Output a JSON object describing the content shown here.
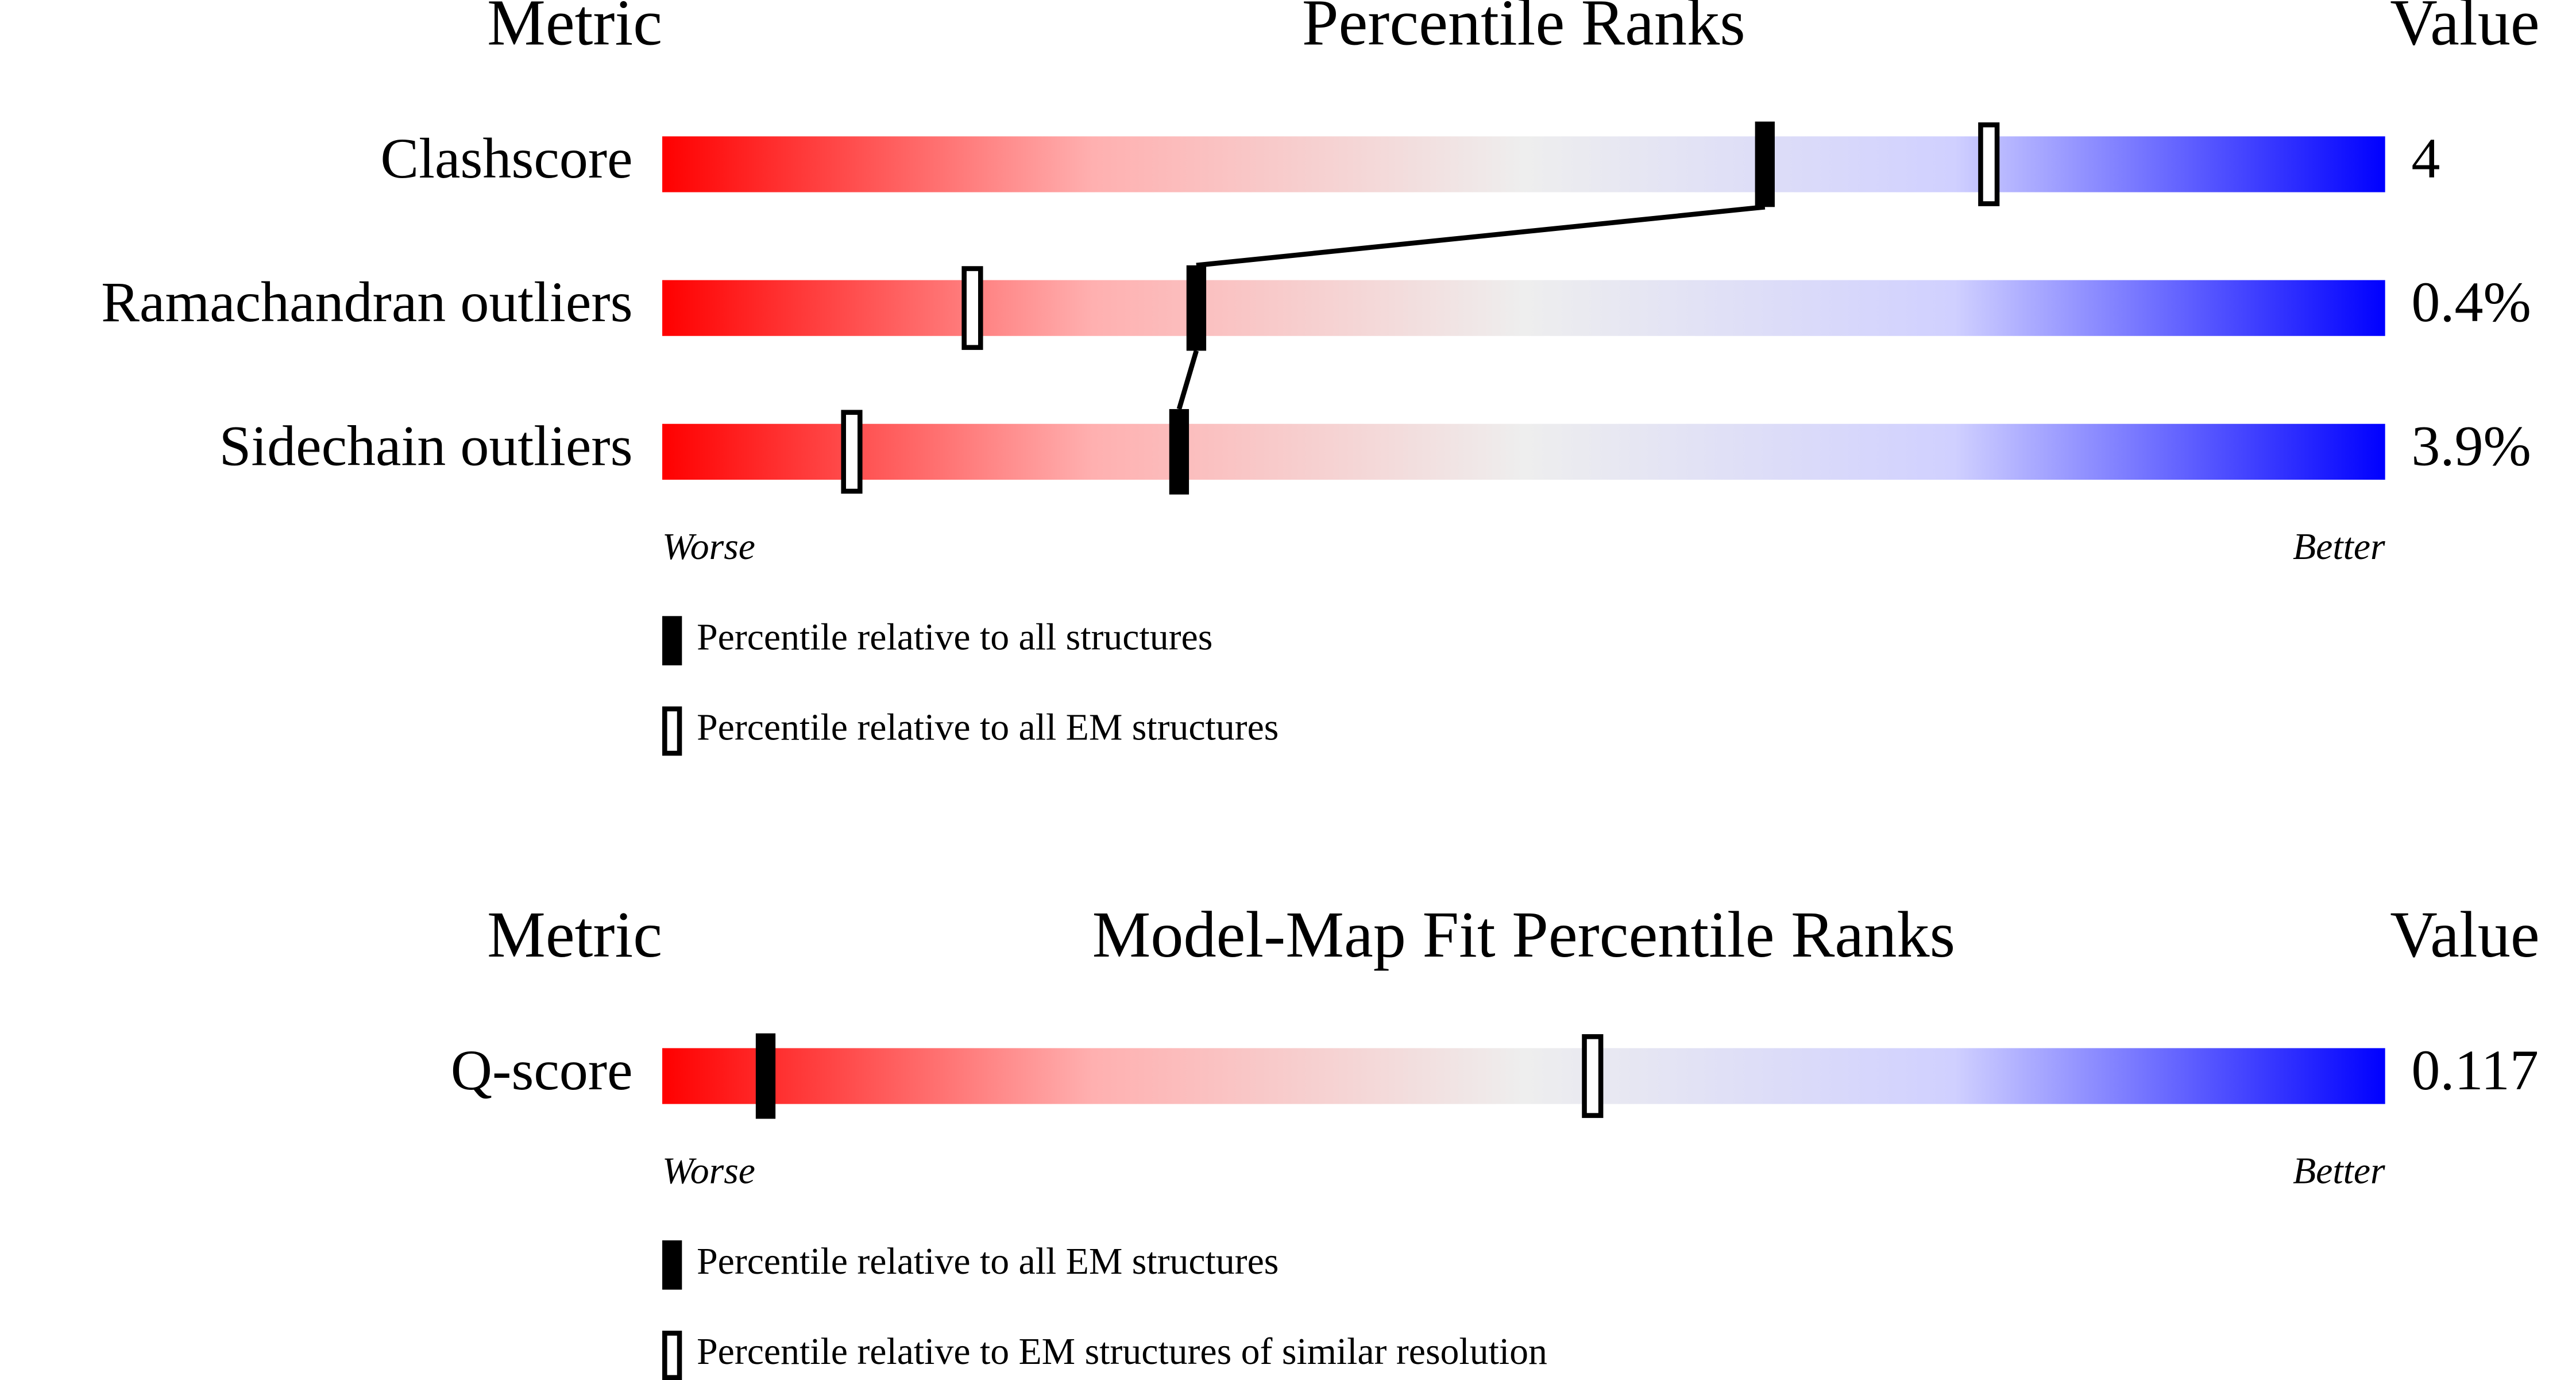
{
  "chart_data": [
    {
      "type": "percentile",
      "title": "Percentile Ranks",
      "metric_header": "Metric",
      "value_header": "Value",
      "categories": [
        "Clashscore",
        "Ramachandran outliers",
        "Sidechain outliers"
      ],
      "metric_values": [
        "4",
        "0.4%",
        "3.9%"
      ],
      "series": [
        {
          "name": "Percentile relative to all structures",
          "style": "filled",
          "color": "#000000",
          "values": [
            64,
            31,
            30
          ]
        },
        {
          "name": "Percentile relative to all EM structures",
          "style": "open",
          "color": "#000000",
          "values": [
            77,
            18,
            11
          ]
        }
      ],
      "xlim": [
        0,
        100
      ],
      "worse_label": "Worse",
      "better_label": "Better"
    },
    {
      "type": "percentile",
      "title": "Model-Map Fit Percentile Ranks",
      "metric_header": "Metric",
      "value_header": "Value",
      "categories": [
        "Q-score"
      ],
      "metric_values": [
        "0.117"
      ],
      "series": [
        {
          "name": "Percentile relative to all EM structures",
          "style": "filled",
          "color": "#000000",
          "values": [
            6
          ]
        },
        {
          "name": "Percentile relative to EM structures of similar resolution",
          "style": "open",
          "color": "#000000",
          "values": [
            54
          ]
        }
      ],
      "xlim": [
        0,
        100
      ],
      "worse_label": "Worse",
      "better_label": "Better"
    }
  ]
}
